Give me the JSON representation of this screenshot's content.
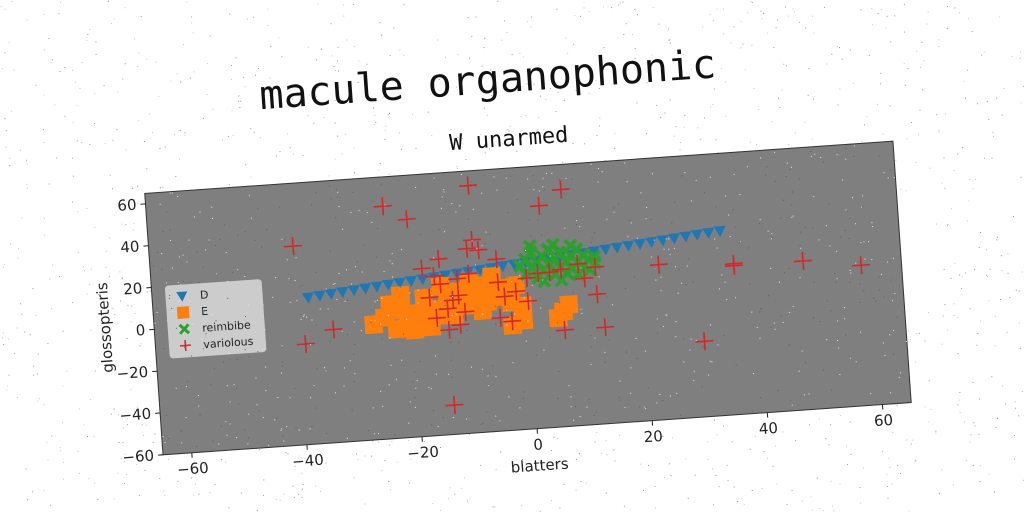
{
  "chart_data": {
    "type": "scatter",
    "suptitle": "macule organophonic",
    "title": "W unarmed",
    "xlabel": "blatters",
    "ylabel": "glossopteris",
    "xlim": [
      -65,
      65
    ],
    "ylim": [
      -60,
      65
    ],
    "xticks": [
      -60,
      -40,
      -20,
      0,
      20,
      40,
      60
    ],
    "yticks": [
      -60,
      -40,
      -20,
      0,
      20,
      40,
      60
    ],
    "grid": false,
    "legend": "center-left",
    "background": "#7f7f7f",
    "series": [
      {
        "name": "D",
        "marker": "triangle-down",
        "color": "#1f77b4",
        "points": [
          [
            -38,
            10
          ],
          [
            -36,
            10.5
          ],
          [
            -34,
            11
          ],
          [
            -32,
            11.5
          ],
          [
            -30,
            12
          ],
          [
            -28,
            12.5
          ],
          [
            -26,
            13
          ],
          [
            -24,
            13.5
          ],
          [
            -22,
            14
          ],
          [
            -20,
            14.5
          ],
          [
            -18,
            15
          ],
          [
            -16,
            15.5
          ],
          [
            -14,
            16
          ],
          [
            -12,
            16.5
          ],
          [
            -10,
            17
          ],
          [
            -8,
            17.5
          ],
          [
            -6,
            18
          ],
          [
            -4,
            18.5
          ],
          [
            -2,
            19
          ],
          [
            0,
            19.5
          ],
          [
            2,
            20
          ],
          [
            4,
            20.5
          ],
          [
            6,
            21
          ],
          [
            8,
            21.5
          ],
          [
            10,
            22
          ],
          [
            12,
            22.5
          ],
          [
            14,
            23
          ],
          [
            16,
            23.5
          ],
          [
            18,
            24
          ],
          [
            20,
            24.5
          ],
          [
            22,
            25
          ],
          [
            24,
            25.5
          ],
          [
            26,
            26
          ],
          [
            28,
            26.5
          ],
          [
            30,
            27
          ],
          [
            32,
            27.5
          ],
          [
            34,
            28
          ]
        ]
      },
      {
        "name": "E",
        "marker": "square",
        "color": "#ff7f0e",
        "points": [
          [
            -27,
            -5
          ],
          [
            -25,
            -2
          ],
          [
            -24,
            4
          ],
          [
            -23,
            -8
          ],
          [
            -22,
            1
          ],
          [
            -21,
            -4
          ],
          [
            -20,
            -9
          ],
          [
            -19,
            -1
          ],
          [
            -18,
            6
          ],
          [
            -17,
            -8
          ],
          [
            -16,
            0
          ],
          [
            -15,
            11
          ],
          [
            -14,
            3
          ],
          [
            -13,
            -3
          ],
          [
            -12,
            8
          ],
          [
            -11,
            1
          ],
          [
            -10,
            12
          ],
          [
            -9,
            6
          ],
          [
            -8,
            10
          ],
          [
            -7,
            2
          ],
          [
            -6,
            14
          ],
          [
            -5,
            8
          ],
          [
            -4,
            4
          ],
          [
            -3,
            1
          ],
          [
            -2,
            9
          ],
          [
            -1,
            -1
          ],
          [
            -3,
            -10
          ],
          [
            -1,
            -8
          ],
          [
            5,
            -8
          ],
          [
            6,
            -5
          ],
          [
            7,
            -2
          ],
          [
            -16,
            -3
          ],
          [
            -22,
            8
          ],
          [
            -8,
            -2
          ]
        ]
      },
      {
        "name": "reimbibe",
        "marker": "x-filled",
        "color": "#2ca02c",
        "points": [
          [
            -1,
            18
          ],
          [
            0,
            21
          ],
          [
            0,
            14
          ],
          [
            1,
            24
          ],
          [
            1,
            17
          ],
          [
            2,
            19
          ],
          [
            2,
            12
          ],
          [
            3,
            22
          ],
          [
            3,
            15
          ],
          [
            4,
            25
          ],
          [
            4,
            18
          ],
          [
            5,
            13
          ],
          [
            5,
            20
          ],
          [
            6,
            16
          ],
          [
            6,
            23
          ],
          [
            7,
            19
          ],
          [
            7,
            13
          ],
          [
            8,
            21
          ],
          [
            8,
            15
          ],
          [
            9,
            18
          ],
          [
            9,
            24
          ],
          [
            10,
            16
          ],
          [
            10,
            21
          ],
          [
            11,
            19
          ],
          [
            11,
            14
          ],
          [
            12,
            20
          ],
          [
            12,
            17
          ],
          [
            3,
            10
          ],
          [
            6,
            10
          ],
          [
            9,
            12
          ],
          [
            1,
            27
          ],
          [
            5,
            27
          ],
          [
            8,
            26
          ]
        ]
      },
      {
        "name": "variolous",
        "marker": "plus",
        "color": "#d62728",
        "points": [
          [
            -9,
            58
          ],
          [
            -24,
            51
          ],
          [
            -20,
            44
          ],
          [
            7,
            53
          ],
          [
            3,
            46
          ],
          [
            -40,
            35
          ],
          [
            -9,
            32
          ],
          [
            -10,
            28
          ],
          [
            -8,
            27
          ],
          [
            -15,
            24
          ],
          [
            -18,
            20
          ],
          [
            -5,
            22
          ],
          [
            -16,
            16
          ],
          [
            -12,
            14
          ],
          [
            -10,
            16
          ],
          [
            -15,
            12
          ],
          [
            -17,
            6
          ],
          [
            -12,
            6
          ],
          [
            -13,
            4
          ],
          [
            -14,
            0
          ],
          [
            -11,
            -2
          ],
          [
            -12,
            -8
          ],
          [
            -14,
            -10
          ],
          [
            -16,
            -4
          ],
          [
            -5,
            11
          ],
          [
            -4,
            4
          ],
          [
            -2,
            6
          ],
          [
            0,
            1
          ],
          [
            0,
            12
          ],
          [
            2,
            14
          ],
          [
            4,
            14
          ],
          [
            6,
            15
          ],
          [
            9,
            17
          ],
          [
            10,
            10
          ],
          [
            12,
            15
          ],
          [
            12,
            2
          ],
          [
            6,
            -14
          ],
          [
            -34,
            -6
          ],
          [
            -39,
            -12
          ],
          [
            -14,
            -46
          ],
          [
            23,
            14
          ],
          [
            36,
            11
          ],
          [
            36,
            12
          ],
          [
            48,
            11
          ],
          [
            58,
            7
          ],
          [
            30,
            -24
          ],
          [
            13,
            -14
          ],
          [
            -3,
            -8
          ],
          [
            -5,
            -6
          ]
        ]
      }
    ]
  }
}
